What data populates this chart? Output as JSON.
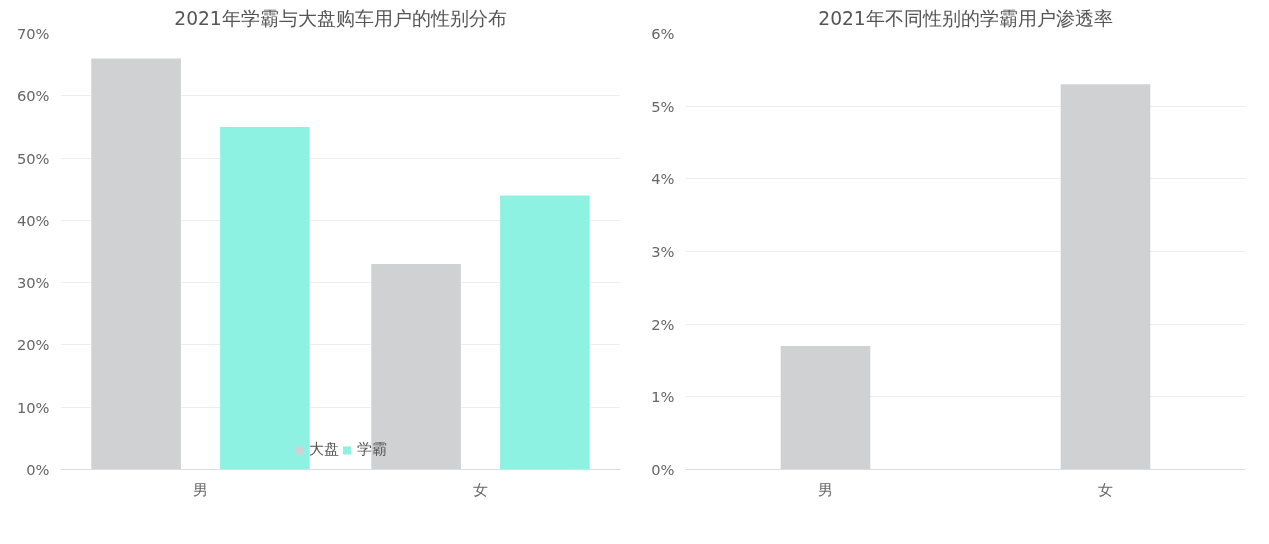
{
  "chart_data": [
    {
      "type": "bar",
      "title": "2021年学霸与大盘购车用户的性别分布",
      "categories": [
        "男",
        "女"
      ],
      "series": [
        {
          "name": "大盘",
          "color": "#cfd1d3",
          "values": [
            66,
            33
          ]
        },
        {
          "name": "学霸",
          "color": "#8ef2e2",
          "values": [
            55,
            44
          ]
        }
      ],
      "ylim": [
        0,
        70
      ],
      "yticks": [
        {
          "value": 0,
          "label": "0%"
        },
        {
          "value": 10,
          "label": "10%"
        },
        {
          "value": 20,
          "label": "20%"
        },
        {
          "value": 30,
          "label": "30%"
        },
        {
          "value": 40,
          "label": "40%"
        },
        {
          "value": 50,
          "label": "50%"
        },
        {
          "value": 60,
          "label": "60%"
        },
        {
          "value": 70,
          "label": "70%"
        }
      ],
      "grid": "y",
      "legend": "bottom"
    },
    {
      "type": "bar",
      "title": "2021年不同性别的学霸用户渗透率",
      "categories": [
        "男",
        "女"
      ],
      "series": [
        {
          "color": "#cfd1d3",
          "values": [
            1.7,
            5.3
          ]
        }
      ],
      "ylim": [
        0,
        6
      ],
      "yticks": [
        {
          "value": 0,
          "label": "0%"
        },
        {
          "value": 1,
          "label": "1%"
        },
        {
          "value": 2,
          "label": "2%"
        },
        {
          "value": 3,
          "label": "3%"
        },
        {
          "value": 4,
          "label": "4%"
        },
        {
          "value": 5,
          "label": "5%"
        },
        {
          "value": 6,
          "label": "6%"
        }
      ],
      "grid": "y"
    }
  ]
}
